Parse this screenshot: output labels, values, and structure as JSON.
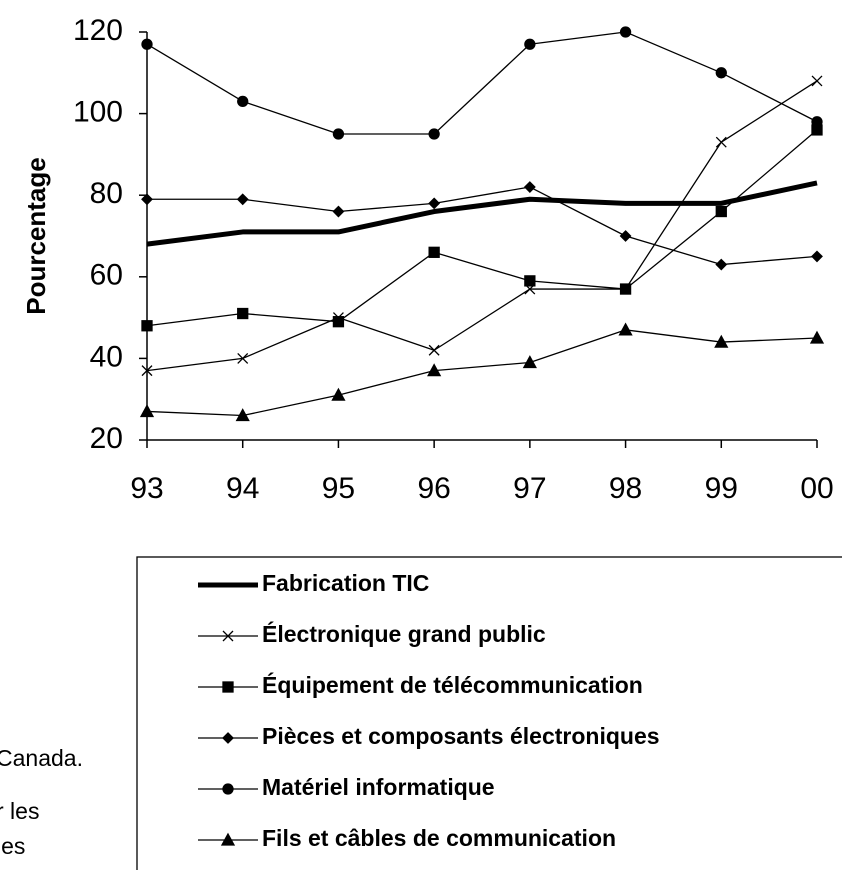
{
  "chart_data": {
    "type": "line",
    "y_label": "Pourcentage",
    "categories": [
      "93",
      "94",
      "95",
      "96",
      "97",
      "98",
      "99",
      "00"
    ],
    "ylim": [
      20,
      120
    ],
    "yticks": [
      20,
      40,
      60,
      80,
      100,
      120
    ],
    "series": [
      {
        "name": "Fabrication TIC",
        "color": "#000000",
        "marker": "none",
        "linewidth": 5,
        "values": [
          68,
          71,
          71,
          76,
          79,
          78,
          78,
          83
        ]
      },
      {
        "name": "Électronique grand public",
        "color": "#000000",
        "marker": "x",
        "linewidth": 1.3,
        "values": [
          37,
          40,
          50,
          42,
          57,
          57,
          93,
          108
        ]
      },
      {
        "name": "Équipement de télécommunication",
        "color": "#000000",
        "marker": "square",
        "linewidth": 1.3,
        "values": [
          48,
          51,
          49,
          66,
          59,
          57,
          76,
          96
        ]
      },
      {
        "name": "Pièces et composants électroniques",
        "color": "#000000",
        "marker": "diamond",
        "linewidth": 1.3,
        "values": [
          79,
          79,
          76,
          78,
          82,
          70,
          63,
          65
        ]
      },
      {
        "name": "Matériel informatique",
        "color": "#000000",
        "marker": "circle",
        "linewidth": 1.3,
        "values": [
          117,
          103,
          95,
          95,
          117,
          120,
          110,
          98
        ]
      },
      {
        "name": "Fils et câbles de communication",
        "color": "#000000",
        "marker": "triangle",
        "linewidth": 1.3,
        "values": [
          27,
          26,
          31,
          37,
          39,
          47,
          44,
          45
        ]
      }
    ],
    "notes": [
      "Canada.",
      "r les",
      "les"
    ]
  }
}
